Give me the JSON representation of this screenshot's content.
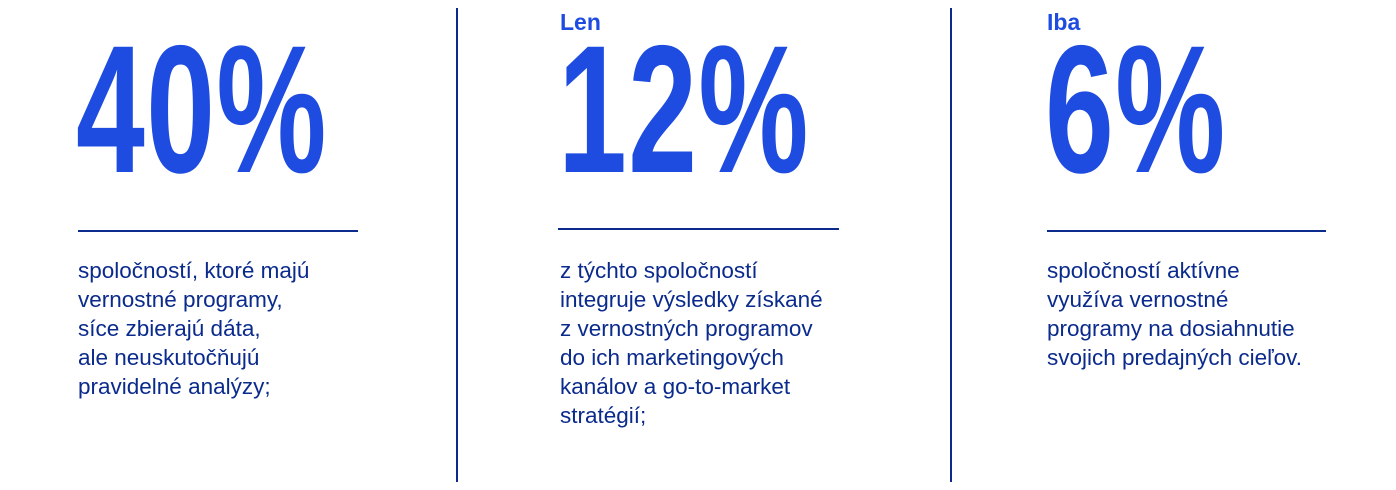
{
  "colors": {
    "accent": "#1f4ce0",
    "text": "#0a2a8c"
  },
  "stats": [
    {
      "prefix": "",
      "value": "40%",
      "description": "spoločností, ktoré majú\nvernostné programy,\nsíce zbierajú dáta,\nale neuskutočňujú\npravidelné analýzy;"
    },
    {
      "prefix": "Len",
      "value": "12%",
      "description": "z týchto spoločností\nintegruje výsledky získané\nz vernostných programov\ndo ich marketingových\nkanálov a go-to-market\nstratégií;"
    },
    {
      "prefix": "Iba",
      "value": "6%",
      "description": "spoločností aktívne\nvyužíva vernostné\nprogramy na dosiahnutie\nsvojich predajných cieľov."
    }
  ]
}
